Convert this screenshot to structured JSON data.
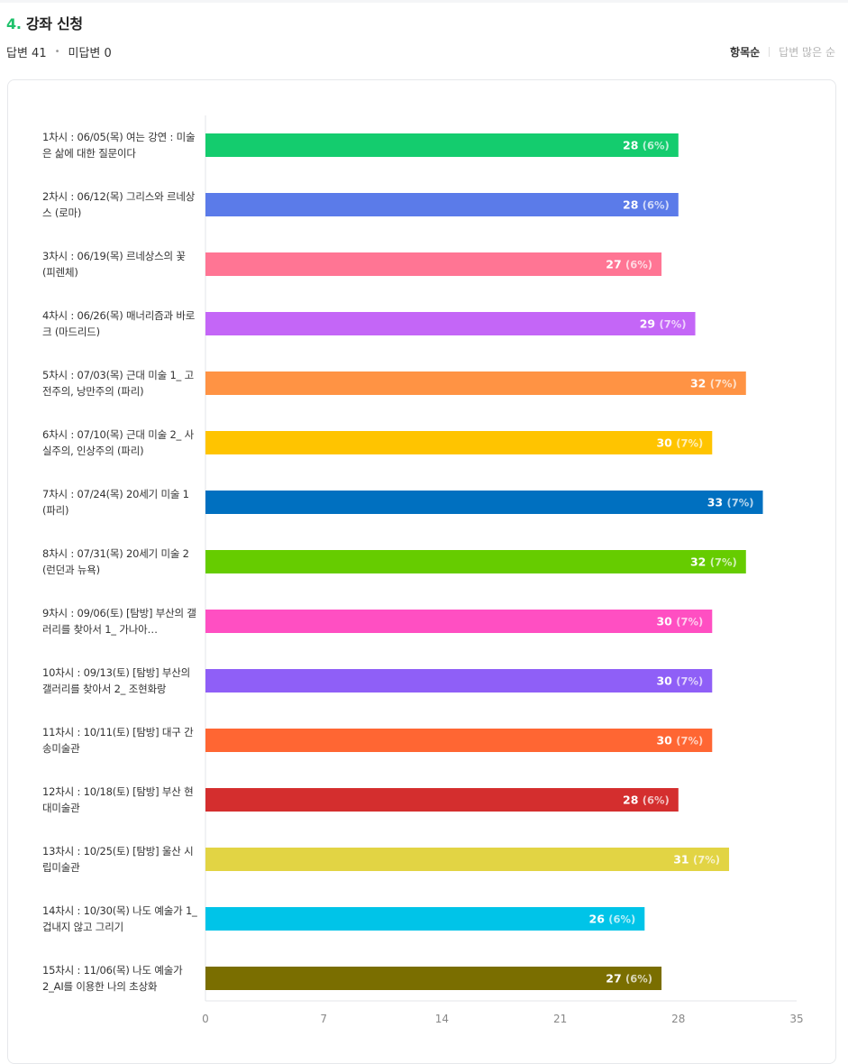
{
  "question": {
    "number": "4.",
    "title": "강좌 신청"
  },
  "stats": {
    "answered": "답변 41",
    "unanswered": "미답변 0"
  },
  "sort": {
    "by_item": "항목순",
    "by_answers": "답변 많은 순"
  },
  "chart_data": {
    "type": "bar",
    "orientation": "horizontal",
    "categories": [
      "1차시 : 06/05(목) 여는 강연 : 미술은 삶에 대한 질문이다",
      "2차시 : 06/12(목) 그리스와 르네상스 (로마)",
      "3차시 : 06/19(목) 르네상스의 꽃 (피렌체)",
      "4차시 : 06/26(목) 매너리즘과 바로크 (마드리드)",
      "5차시 : 07/03(목) 근대 미술 1_ 고전주의, 낭만주의 (파리)",
      "6차시 : 07/10(목) 근대 미술 2_ 사실주의, 인상주의 (파리)",
      "7차시 : 07/24(목) 20세기 미술 1 (파리)",
      "8차시 : 07/31(목) 20세기 미술 2 (런던과 뉴욕)",
      "9차시 : 09/06(토) [탐방] 부산의 갤러리를 찾아서 1_ 가나아…",
      "10차시 : 09/13(토) [탐방] 부산의 갤러리를 찾아서 2_ 조현화랑",
      "11차시 : 10/11(토) [탐방] 대구 간송미술관",
      "12차시 : 10/18(토) [탐방] 부산 현대미술관",
      "13차시 : 10/25(토) [탐방] 울산 시립미술관",
      "14차시 : 10/30(목) 나도 예술가 1_겁내지 않고 그리기",
      "15차시 : 11/06(목) 나도 예술가 2_AI를 이용한 나의 초상화"
    ],
    "values": [
      28,
      28,
      27,
      29,
      32,
      30,
      33,
      32,
      30,
      30,
      30,
      28,
      31,
      26,
      27
    ],
    "percents": [
      "(6%)",
      "(6%)",
      "(6%)",
      "(7%)",
      "(7%)",
      "(7%)",
      "(7%)",
      "(7%)",
      "(7%)",
      "(7%)",
      "(7%)",
      "(6%)",
      "(7%)",
      "(6%)",
      "(6%)"
    ],
    "colors": [
      "#14cc6e",
      "#5b7be9",
      "#ff7594",
      "#c466f7",
      "#ff9344",
      "#ffc400",
      "#0070c0",
      "#66cc00",
      "#ff4fc2",
      "#8f5ff7",
      "#ff6633",
      "#d42e2e",
      "#e2d444",
      "#00c4e8",
      "#7a6e00"
    ],
    "xlim": [
      0,
      35
    ],
    "xticks": [
      "0",
      "7",
      "14",
      "21",
      "28",
      "35"
    ],
    "grid": false
  }
}
